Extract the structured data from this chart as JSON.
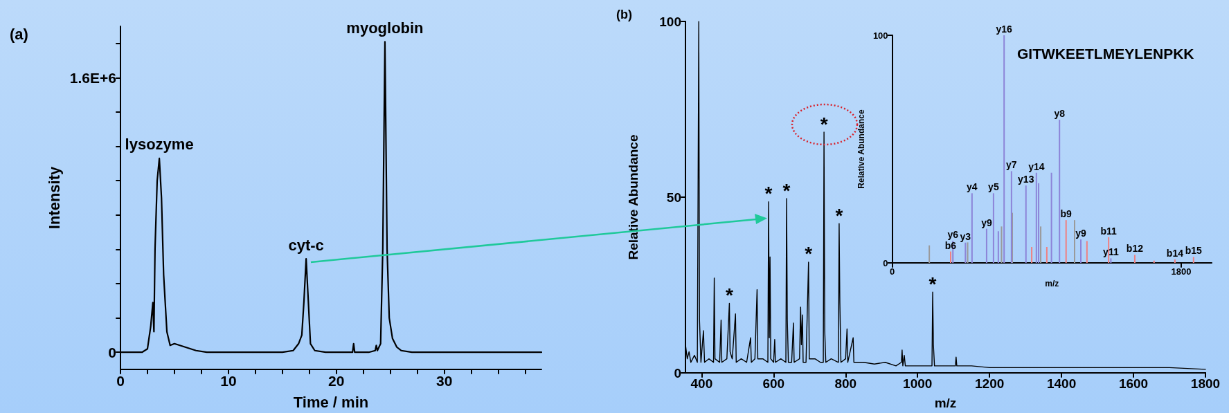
{
  "chart_data": [
    {
      "type": "line",
      "xlabel": "Time / min",
      "ylabel": "Intensity",
      "xlim": [
        0,
        39
      ],
      "ylim": [
        -100000,
        1900000
      ],
      "xticks": [
        0,
        {
          "value": 2.5,
          "label": null
        },
        {
          "value": 5,
          "label": null
        },
        {
          "value": 7.5,
          "label": null
        },
        10,
        {
          "value": 12.5,
          "label": null
        },
        {
          "value": 15,
          "label": null
        },
        {
          "value": 17.5,
          "label": null
        },
        20,
        {
          "value": 22.5,
          "label": null
        },
        {
          "value": 25,
          "label": null
        },
        {
          "value": 27.5,
          "label": null
        },
        30,
        {
          "value": 32.5,
          "label": null
        },
        {
          "value": 35,
          "label": null
        },
        {
          "value": 37.5,
          "label": null
        }
      ],
      "yticks": [
        {
          "value": 0,
          "label": "0"
        },
        {
          "value": 200000,
          "label": null
        },
        {
          "value": 400000,
          "label": null
        },
        {
          "value": 600000,
          "label": null
        },
        {
          "value": 800000,
          "label": null
        },
        {
          "value": 1000000,
          "label": null
        },
        {
          "value": 1200000,
          "label": null
        },
        {
          "value": 1400000,
          "label": null
        },
        {
          "value": 1600000,
          "label": "1.6E+6"
        },
        {
          "value": 1800000,
          "label": null
        }
      ],
      "series": [
        {
          "color": "#000000",
          "x": [
            0,
            0.5,
            1,
            1.5,
            2,
            2.5,
            2.8,
            3.0,
            3.1,
            3.2,
            3.4,
            3.6,
            3.8,
            4.0,
            4.3,
            4.6,
            5.0,
            5.5,
            6,
            7,
            8,
            10,
            12,
            14,
            15,
            16,
            16.5,
            16.8,
            17.0,
            17.2,
            17.4,
            17.6,
            18,
            19,
            20,
            21,
            21.5,
            21.6,
            21.7,
            22,
            23,
            23.6,
            23.7,
            23.8,
            24.1,
            24.3,
            24.5,
            24.7,
            24.9,
            25.2,
            25.6,
            26,
            27,
            28,
            30,
            33,
            35,
            37,
            39
          ],
          "values": [
            0,
            0,
            0,
            0,
            0,
            20000,
            150000,
            290000,
            120000,
            600000,
            1000000,
            1130000,
            900000,
            450000,
            120000,
            40000,
            50000,
            40000,
            30000,
            10000,
            0,
            0,
            0,
            0,
            0,
            10000,
            50000,
            100000,
            300000,
            545000,
            300000,
            50000,
            10000,
            0,
            0,
            0,
            0,
            50000,
            0,
            0,
            0,
            10000,
            40000,
            10000,
            50000,
            600000,
            1810000,
            600000,
            200000,
            80000,
            30000,
            10000,
            0,
            0,
            0,
            0,
            0,
            0,
            0
          ]
        }
      ],
      "annotations": [
        "(a)",
        {
          "text": "lysozyme",
          "x": 3.6,
          "y": 1130000
        },
        {
          "text": "cyt-c",
          "x": 17.2,
          "y": 545000
        },
        {
          "text": "myoglobin",
          "x": 24.5,
          "y": 1810000
        }
      ]
    },
    {
      "type": "line",
      "xlabel": "m/z",
      "ylabel": "Relative Abundance",
      "xlim": [
        355,
        1800
      ],
      "ylim": [
        0,
        100
      ],
      "xticks": [
        400,
        600,
        800,
        1000,
        1200,
        1400,
        1600,
        1800
      ],
      "yticks": [
        0,
        50,
        100
      ],
      "series": [
        {
          "color": "#000000",
          "x": [
            355,
            360,
            365,
            370,
            380,
            388,
            392,
            394,
            398,
            405,
            408,
            420,
            433,
            435,
            437,
            450,
            454,
            456,
            470,
            477,
            479,
            485,
            494,
            496,
            510,
            525,
            536,
            538,
            548,
            554,
            556,
            570,
            584,
            586,
            588,
            590,
            592,
            600,
            603,
            605,
            620,
            634,
            636,
            638,
            641,
            650,
            655,
            657,
            672,
            675,
            677,
            680,
            682,
            690,
            697,
            699,
            715,
            730,
            738,
            740,
            742,
            745,
            760,
            780,
            782,
            784,
            787,
            800,
            804,
            806,
            821,
            823,
            850,
            880,
            910,
            940,
            955,
            957,
            959,
            963,
            966,
            990,
            1020,
            1040,
            1042,
            1044,
            1047,
            1080,
            1105,
            1107,
            1109,
            1150,
            1200,
            1300,
            1400,
            1500,
            1600,
            1700,
            1800
          ],
          "values": [
            8,
            4,
            6,
            3,
            5,
            3,
            100,
            15,
            3,
            12,
            3,
            4,
            3,
            27,
            4,
            3,
            15,
            3,
            4,
            19.8,
            6,
            4,
            16.8,
            3,
            4,
            3,
            10,
            3,
            4,
            23.7,
            4,
            4,
            3,
            48.7,
            10,
            33,
            4,
            3,
            9.5,
            3,
            4,
            3,
            49.6,
            15,
            3,
            3,
            14.2,
            3,
            4,
            18.7,
            8,
            16.5,
            3,
            3,
            31.5,
            4,
            4,
            3,
            3,
            68.5,
            12,
            3,
            4,
            3,
            42.5,
            20,
            3,
            4,
            12.5,
            3,
            10,
            3,
            3,
            2.5,
            3,
            2,
            3,
            6.5,
            2,
            5,
            2,
            2,
            2,
            2,
            23,
            8,
            2,
            2,
            2,
            4.5,
            2,
            2,
            1.5,
            1.5,
            1.5,
            1.5,
            1.5,
            1.5,
            1
          ]
        }
      ],
      "annotations": [
        "(b)",
        {
          "text": "*",
          "x": 477,
          "y": 19.8
        },
        {
          "text": "*",
          "x": 586,
          "y": 48.7
        },
        {
          "text": "*",
          "x": 636,
          "y": 49.6
        },
        {
          "text": "*",
          "x": 697,
          "y": 31.5
        },
        {
          "text": "*",
          "x": 740,
          "y": 68.5
        },
        {
          "text": "*",
          "x": 782,
          "y": 42.5
        },
        {
          "text": "*",
          "x": 1042,
          "y": 23
        }
      ]
    },
    {
      "type": "bar",
      "xlabel": "m/z",
      "ylabel": "Relative Abundance",
      "xlim": [
        0,
        1990
      ],
      "ylim": [
        0,
        100
      ],
      "xticks": [
        0,
        1800
      ],
      "yticks": [
        0,
        100
      ],
      "series": [
        {
          "color": "#9a9a9a",
          "x": [
            231,
            470,
            681,
            748,
            925,
            1136
          ],
          "values": [
            7.7,
            9,
            16,
            22,
            16,
            18.8
          ]
        },
        {
          "color": "#8c84d8",
          "x": [
            378,
            456,
            497,
            588,
            631,
            661,
            697,
            743,
            833,
            898,
            912,
            992,
            1042,
            1175,
            1362
          ],
          "values": [
            9.7,
            8.9,
            30.6,
            15,
            30.6,
            13.9,
            100,
            40.3,
            34,
            39.6,
            35,
            39.6,
            62.9,
            10.3,
            2
          ],
          "value_labels": [
            "y6",
            "y3",
            "y4",
            "y9",
            "y5",
            null,
            "y16",
            "y7",
            "y13",
            "y14",
            null,
            null,
            "y8",
            "y9",
            "y11"
          ]
        },
        {
          "color": "#f08080",
          "x": [
            364,
            869,
            963,
            1083,
            1213,
            1348,
            1511,
            1631,
            1761,
            1877
          ],
          "values": [
            5,
            7,
            7,
            18.8,
            9.6,
            11.3,
            3.5,
            1,
            1.5,
            2.6
          ],
          "value_labels": [
            "b6",
            null,
            null,
            "b9",
            null,
            "b11",
            "b12",
            null,
            "b14",
            "b15"
          ]
        }
      ],
      "annotations": [
        "GITWKEETLMEYLENPKK"
      ]
    }
  ]
}
